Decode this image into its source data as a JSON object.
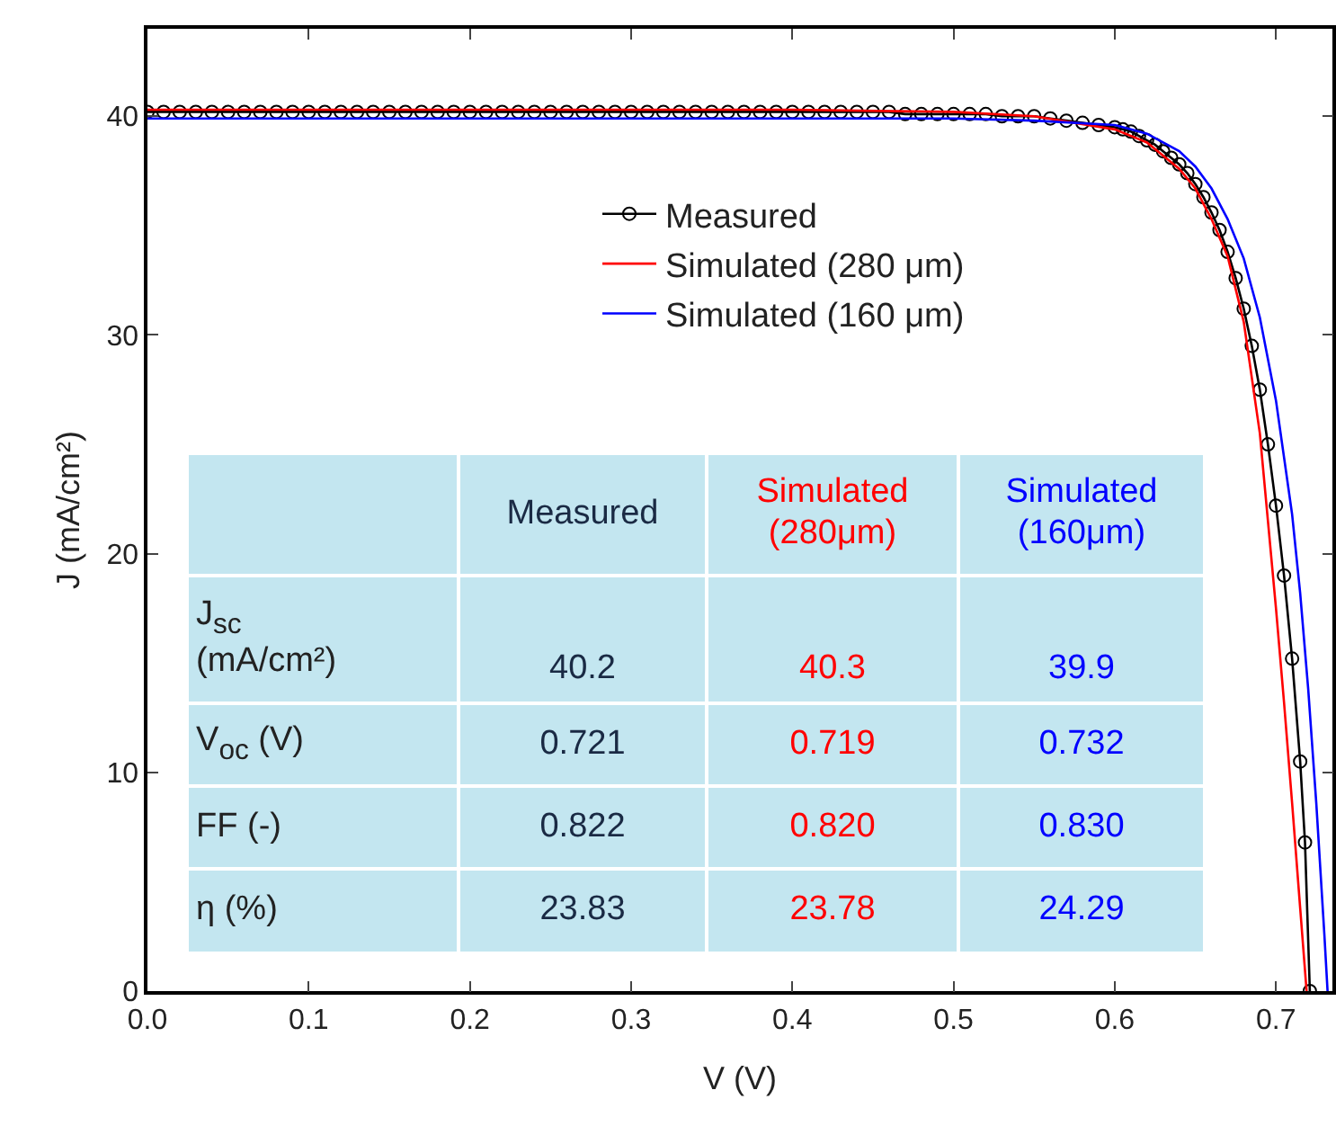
{
  "chart_data": {
    "type": "line",
    "xlabel": "V (V)",
    "ylabel": "J (mA/cm²)",
    "xlim": [
      0,
      0.735
    ],
    "xticks": [
      {
        "value": 0,
        "label": "0.0"
      },
      0.1,
      0.2,
      0.3,
      0.4,
      0.5,
      0.6,
      0.7
    ],
    "ylim": [
      0,
      44
    ],
    "yticks": [
      0,
      10,
      20,
      30,
      40
    ],
    "grid": false,
    "legend": "top right",
    "series": [
      {
        "name": "Measured",
        "color": "#000000",
        "marker": "circle",
        "x": [
          0,
          0.01,
          0.02,
          0.03,
          0.04,
          0.05,
          0.06,
          0.07,
          0.08,
          0.09,
          0.1,
          0.11,
          0.12,
          0.13,
          0.14,
          0.15,
          0.16,
          0.17,
          0.18,
          0.19,
          0.2,
          0.21,
          0.22,
          0.23,
          0.24,
          0.25,
          0.26,
          0.27,
          0.28,
          0.29,
          0.3,
          0.31,
          0.32,
          0.33,
          0.34,
          0.35,
          0.36,
          0.37,
          0.38,
          0.39,
          0.4,
          0.41,
          0.42,
          0.43,
          0.44,
          0.45,
          0.46,
          0.47,
          0.48,
          0.49,
          0.5,
          0.51,
          0.52,
          0.53,
          0.54,
          0.55,
          0.56,
          0.57,
          0.58,
          0.59,
          0.6,
          0.605,
          0.61,
          0.615,
          0.62,
          0.625,
          0.63,
          0.635,
          0.64,
          0.645,
          0.65,
          0.655,
          0.66,
          0.665,
          0.67,
          0.675,
          0.68,
          0.685,
          0.69,
          0.695,
          0.7,
          0.705,
          0.71,
          0.715,
          0.718,
          0.721
        ],
        "values": [
          40.2,
          40.2,
          40.2,
          40.2,
          40.2,
          40.2,
          40.2,
          40.2,
          40.2,
          40.2,
          40.2,
          40.2,
          40.2,
          40.2,
          40.2,
          40.2,
          40.2,
          40.2,
          40.2,
          40.2,
          40.2,
          40.2,
          40.2,
          40.2,
          40.2,
          40.2,
          40.2,
          40.2,
          40.2,
          40.2,
          40.2,
          40.2,
          40.2,
          40.2,
          40.2,
          40.2,
          40.2,
          40.2,
          40.2,
          40.2,
          40.2,
          40.2,
          40.2,
          40.2,
          40.2,
          40.2,
          40.2,
          40.1,
          40.1,
          40.1,
          40.1,
          40.1,
          40.1,
          40,
          40,
          40,
          39.9,
          39.8,
          39.7,
          39.6,
          39.5,
          39.4,
          39.3,
          39.1,
          38.9,
          38.7,
          38.4,
          38.1,
          37.8,
          37.4,
          36.9,
          36.3,
          35.6,
          34.8,
          33.8,
          32.6,
          31.2,
          29.5,
          27.5,
          25.0,
          22.2,
          19.0,
          15.2,
          10.5,
          6.8,
          0
        ]
      },
      {
        "name": "Simulated (280 μm)",
        "color": "#ff0000",
        "marker": "none",
        "x": [
          0,
          0.1,
          0.2,
          0.3,
          0.4,
          0.5,
          0.55,
          0.6,
          0.62,
          0.64,
          0.65,
          0.66,
          0.67,
          0.68,
          0.69,
          0.695,
          0.7,
          0.705,
          0.71,
          0.715,
          0.719
        ],
        "values": [
          40.3,
          40.3,
          40.3,
          40.3,
          40.3,
          40.2,
          40.0,
          39.4,
          38.8,
          37.6,
          36.7,
          35.3,
          33.6,
          30.6,
          25.5,
          21.5,
          17.5,
          13.2,
          8.6,
          3.8,
          0
        ]
      },
      {
        "name": "Simulated (160 μm)",
        "color": "#0000ff",
        "marker": "none",
        "x": [
          0,
          0.1,
          0.2,
          0.3,
          0.4,
          0.5,
          0.55,
          0.6,
          0.62,
          0.64,
          0.65,
          0.66,
          0.67,
          0.68,
          0.69,
          0.7,
          0.71,
          0.715,
          0.72,
          0.725,
          0.73,
          0.732
        ],
        "values": [
          39.9,
          39.9,
          39.9,
          39.9,
          39.9,
          39.9,
          39.8,
          39.6,
          39.2,
          38.4,
          37.7,
          36.7,
          35.3,
          33.5,
          30.8,
          27.0,
          21.8,
          18.2,
          13.8,
          8.6,
          2.6,
          0
        ]
      }
    ],
    "annotations": [
      "Measured",
      "Simulated\n(280μm)",
      "Simulated\n(160μm)",
      "J$_{sc}$\n(mA/cm²)",
      "40.2",
      "40.3",
      "39.9",
      "V$_{oc}$ (V)",
      "0.721",
      "0.719",
      "0.732",
      "FF (-)",
      "0.822",
      "0.820",
      "0.830",
      "η (%)",
      "23.83",
      "23.78",
      "24.29"
    ]
  }
}
